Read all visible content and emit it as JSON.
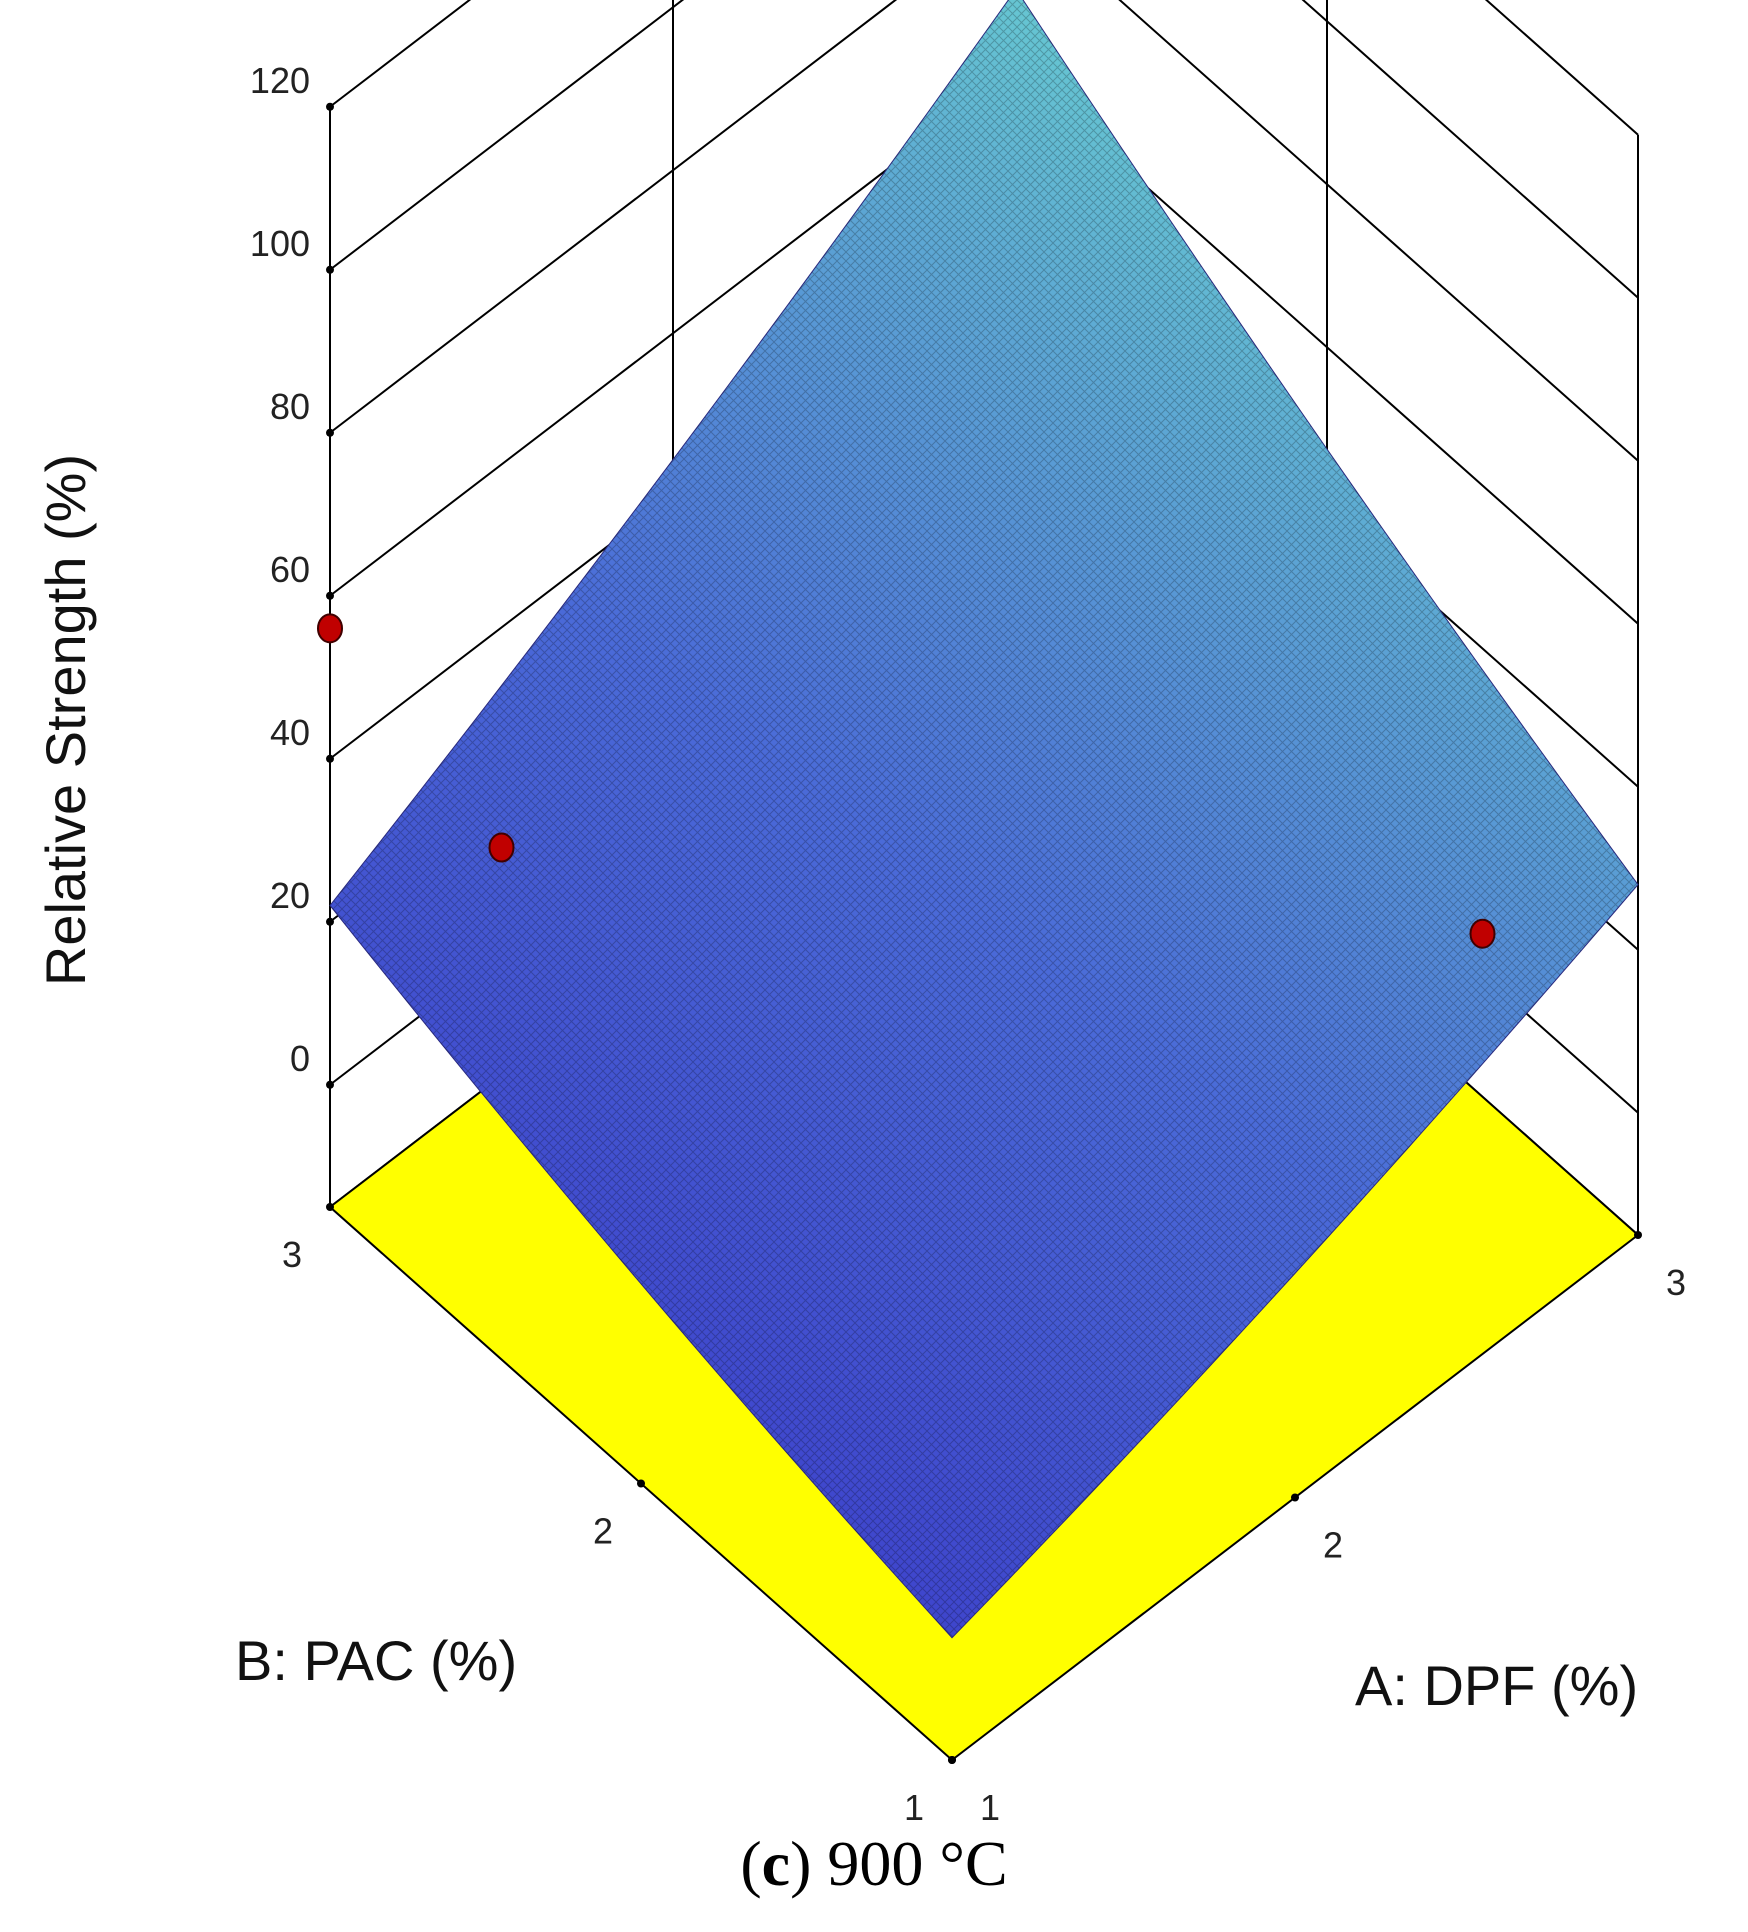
{
  "chart_data": {
    "type": "surface",
    "caption": {
      "letter": "c",
      "text": "900 °C"
    },
    "zlabel": "Relative Strength (%)",
    "xlabel": "A: DPF (%)",
    "ylabel": "B: PAC (%)",
    "x_ticks": [
      "1",
      "2",
      "3"
    ],
    "y_ticks": [
      "1",
      "2",
      "3"
    ],
    "z_ticks": [
      "0",
      "20",
      "40",
      "60",
      "80",
      "100",
      "120"
    ],
    "xlim": [
      1,
      3
    ],
    "ylim": [
      1,
      3
    ],
    "zlim": [
      -15,
      120
    ],
    "floor_z": -15,
    "grid": true,
    "surface_corners": [
      {
        "A": 1,
        "B": 1,
        "z": 0
      },
      {
        "A": 3,
        "B": 1,
        "z": 28
      },
      {
        "A": 1,
        "B": 3,
        "z": 22
      },
      {
        "A": 3,
        "B": 3,
        "z": 70
      }
    ],
    "points": [
      {
        "A": 1,
        "B": 3,
        "z": 56
      },
      {
        "A": 1.5,
        "B": 3,
        "z": 13
      },
      {
        "A": 3,
        "B": 1.5,
        "z": 5
      }
    ],
    "colors": {
      "floor": "#ffff00",
      "surface_low": "#3a38c8",
      "surface_mid": "#4a6ad8",
      "surface_high": "#6ee0d0",
      "point": "#c00000",
      "grid": "#000000"
    }
  }
}
